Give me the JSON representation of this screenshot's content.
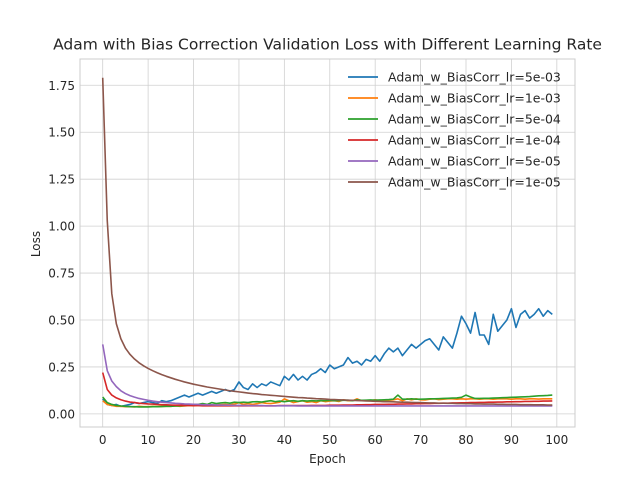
{
  "chart_data": {
    "type": "line",
    "title": "Adam with Bias Correction Validation Loss with Different Learning Rate",
    "xlabel": "Epoch",
    "ylabel": "Loss",
    "xlim": [
      -5,
      104
    ],
    "ylim": [
      -0.07,
      1.89
    ],
    "xticks": [
      0,
      10,
      20,
      30,
      40,
      50,
      60,
      70,
      80,
      90,
      100
    ],
    "yticks": [
      0.0,
      0.25,
      0.5,
      0.75,
      1.0,
      1.25,
      1.5,
      1.75
    ],
    "grid": true,
    "legend_position": "top-right",
    "series": [
      {
        "name": "Adam_w_BiasCorr_lr=5e-03",
        "color": "#1f77b4",
        "x": [
          0,
          1,
          2,
          3,
          4,
          5,
          6,
          7,
          8,
          9,
          10,
          11,
          12,
          13,
          14,
          15,
          16,
          17,
          18,
          19,
          20,
          21,
          22,
          23,
          24,
          25,
          26,
          27,
          28,
          29,
          30,
          31,
          32,
          33,
          34,
          35,
          36,
          37,
          38,
          39,
          40,
          41,
          42,
          43,
          44,
          45,
          46,
          47,
          48,
          49,
          50,
          51,
          52,
          53,
          54,
          55,
          56,
          57,
          58,
          59,
          60,
          61,
          62,
          63,
          64,
          65,
          66,
          67,
          68,
          69,
          70,
          71,
          72,
          73,
          74,
          75,
          76,
          77,
          78,
          79,
          80,
          81,
          82,
          83,
          84,
          85,
          86,
          87,
          88,
          89,
          90,
          91,
          92,
          93,
          94,
          95,
          96,
          97,
          98,
          99
        ],
        "y": [
          0.08,
          0.05,
          0.045,
          0.05,
          0.04,
          0.045,
          0.05,
          0.06,
          0.055,
          0.06,
          0.065,
          0.06,
          0.055,
          0.07,
          0.065,
          0.07,
          0.08,
          0.09,
          0.1,
          0.09,
          0.1,
          0.11,
          0.1,
          0.11,
          0.12,
          0.11,
          0.12,
          0.13,
          0.12,
          0.13,
          0.17,
          0.14,
          0.13,
          0.16,
          0.14,
          0.16,
          0.15,
          0.17,
          0.16,
          0.15,
          0.2,
          0.18,
          0.21,
          0.18,
          0.2,
          0.18,
          0.21,
          0.22,
          0.24,
          0.22,
          0.26,
          0.24,
          0.25,
          0.26,
          0.3,
          0.27,
          0.28,
          0.26,
          0.29,
          0.28,
          0.31,
          0.28,
          0.32,
          0.35,
          0.33,
          0.35,
          0.31,
          0.34,
          0.37,
          0.35,
          0.37,
          0.39,
          0.4,
          0.37,
          0.34,
          0.41,
          0.38,
          0.35,
          0.43,
          0.52,
          0.48,
          0.43,
          0.54,
          0.42,
          0.42,
          0.37,
          0.53,
          0.44,
          0.47,
          0.5,
          0.56,
          0.46,
          0.53,
          0.55,
          0.51,
          0.53,
          0.56,
          0.52,
          0.55,
          0.53
        ]
      },
      {
        "name": "Adam_w_BiasCorr_lr=1e-03",
        "color": "#ff7f0e",
        "x": [
          0,
          1,
          2,
          3,
          4,
          5,
          6,
          7,
          8,
          9,
          10,
          11,
          12,
          13,
          14,
          15,
          16,
          17,
          18,
          19,
          20,
          21,
          22,
          23,
          24,
          25,
          26,
          27,
          28,
          29,
          30,
          31,
          32,
          33,
          34,
          35,
          36,
          37,
          38,
          39,
          40,
          41,
          42,
          43,
          44,
          45,
          46,
          47,
          48,
          49,
          50,
          51,
          52,
          53,
          54,
          55,
          56,
          57,
          58,
          59,
          60,
          61,
          62,
          63,
          64,
          65,
          66,
          67,
          68,
          69,
          70,
          71,
          72,
          73,
          74,
          75,
          76,
          77,
          78,
          79,
          80,
          81,
          82,
          83,
          84,
          85,
          86,
          87,
          88,
          89,
          90,
          91,
          92,
          93,
          94,
          95,
          96,
          97,
          98,
          99
        ],
        "y": [
          0.07,
          0.05,
          0.045,
          0.04,
          0.04,
          0.038,
          0.038,
          0.037,
          0.04,
          0.038,
          0.038,
          0.04,
          0.039,
          0.04,
          0.041,
          0.04,
          0.042,
          0.04,
          0.042,
          0.044,
          0.043,
          0.045,
          0.046,
          0.044,
          0.048,
          0.047,
          0.049,
          0.05,
          0.048,
          0.052,
          0.06,
          0.05,
          0.055,
          0.05,
          0.054,
          0.06,
          0.056,
          0.055,
          0.058,
          0.062,
          0.08,
          0.07,
          0.06,
          0.065,
          0.07,
          0.062,
          0.065,
          0.06,
          0.07,
          0.065,
          0.068,
          0.07,
          0.066,
          0.075,
          0.07,
          0.07,
          0.08,
          0.07,
          0.072,
          0.07,
          0.075,
          0.07,
          0.07,
          0.073,
          0.075,
          0.08,
          0.07,
          0.08,
          0.075,
          0.08,
          0.075,
          0.074,
          0.078,
          0.08,
          0.076,
          0.078,
          0.08,
          0.08,
          0.078,
          0.08,
          0.078,
          0.08,
          0.08,
          0.078,
          0.08,
          0.08,
          0.078,
          0.08,
          0.08,
          0.08,
          0.078,
          0.08,
          0.08,
          0.078,
          0.08,
          0.08,
          0.079,
          0.08,
          0.08,
          0.08
        ]
      },
      {
        "name": "Adam_w_BiasCorr_lr=5e-04",
        "color": "#2ca02c",
        "x": [
          0,
          1,
          2,
          3,
          4,
          5,
          6,
          7,
          8,
          9,
          10,
          11,
          12,
          13,
          14,
          15,
          16,
          17,
          18,
          19,
          20,
          21,
          22,
          23,
          24,
          25,
          26,
          27,
          28,
          29,
          30,
          31,
          32,
          33,
          34,
          35,
          36,
          37,
          38,
          39,
          40,
          41,
          42,
          43,
          44,
          45,
          46,
          47,
          48,
          49,
          50,
          51,
          52,
          53,
          54,
          55,
          56,
          57,
          58,
          59,
          60,
          61,
          62,
          63,
          64,
          65,
          66,
          67,
          68,
          69,
          70,
          71,
          72,
          73,
          74,
          75,
          76,
          77,
          78,
          79,
          80,
          81,
          82,
          83,
          84,
          85,
          86,
          87,
          88,
          89,
          90,
          91,
          92,
          93,
          94,
          95,
          96,
          97,
          98,
          99
        ],
        "y": [
          0.09,
          0.06,
          0.05,
          0.045,
          0.042,
          0.04,
          0.038,
          0.038,
          0.037,
          0.037,
          0.037,
          0.038,
          0.038,
          0.039,
          0.04,
          0.04,
          0.042,
          0.043,
          0.045,
          0.046,
          0.05,
          0.05,
          0.055,
          0.05,
          0.06,
          0.055,
          0.058,
          0.06,
          0.057,
          0.062,
          0.06,
          0.062,
          0.06,
          0.064,
          0.065,
          0.063,
          0.067,
          0.07,
          0.065,
          0.068,
          0.065,
          0.068,
          0.07,
          0.067,
          0.07,
          0.068,
          0.07,
          0.069,
          0.071,
          0.07,
          0.072,
          0.07,
          0.071,
          0.072,
          0.073,
          0.07,
          0.075,
          0.072,
          0.073,
          0.074,
          0.073,
          0.074,
          0.075,
          0.076,
          0.078,
          0.1,
          0.078,
          0.078,
          0.08,
          0.078,
          0.078,
          0.079,
          0.08,
          0.08,
          0.081,
          0.082,
          0.083,
          0.084,
          0.085,
          0.088,
          0.1,
          0.09,
          0.082,
          0.082,
          0.083,
          0.083,
          0.084,
          0.085,
          0.086,
          0.087,
          0.088,
          0.089,
          0.09,
          0.091,
          0.092,
          0.094,
          0.096,
          0.097,
          0.098,
          0.1
        ]
      },
      {
        "name": "Adam_w_BiasCorr_lr=1e-04",
        "color": "#d62728",
        "x": [
          0,
          1,
          2,
          3,
          4,
          5,
          6,
          7,
          8,
          9,
          10,
          11,
          12,
          13,
          14,
          15,
          16,
          17,
          18,
          19,
          20,
          21,
          22,
          23,
          24,
          25,
          26,
          27,
          28,
          29,
          30,
          31,
          32,
          33,
          34,
          35,
          36,
          37,
          38,
          39,
          40,
          41,
          42,
          43,
          44,
          45,
          46,
          47,
          48,
          49,
          50,
          51,
          52,
          53,
          54,
          55,
          56,
          57,
          58,
          59,
          60,
          61,
          62,
          63,
          64,
          65,
          66,
          67,
          68,
          69,
          70,
          71,
          72,
          73,
          74,
          75,
          76,
          77,
          78,
          79,
          80,
          81,
          82,
          83,
          84,
          85,
          86,
          87,
          88,
          89,
          90,
          91,
          92,
          93,
          94,
          95,
          96,
          97,
          98,
          99
        ],
        "y": [
          0.22,
          0.13,
          0.1,
          0.085,
          0.075,
          0.068,
          0.063,
          0.06,
          0.057,
          0.055,
          0.053,
          0.052,
          0.05,
          0.049,
          0.048,
          0.047,
          0.046,
          0.046,
          0.045,
          0.045,
          0.044,
          0.044,
          0.043,
          0.043,
          0.043,
          0.043,
          0.043,
          0.043,
          0.043,
          0.043,
          0.043,
          0.043,
          0.043,
          0.043,
          0.043,
          0.043,
          0.043,
          0.043,
          0.043,
          0.044,
          0.044,
          0.044,
          0.044,
          0.044,
          0.044,
          0.044,
          0.045,
          0.045,
          0.045,
          0.045,
          0.046,
          0.046,
          0.046,
          0.047,
          0.047,
          0.047,
          0.048,
          0.048,
          0.049,
          0.049,
          0.05,
          0.05,
          0.05,
          0.051,
          0.051,
          0.052,
          0.052,
          0.053,
          0.053,
          0.054,
          0.054,
          0.055,
          0.055,
          0.056,
          0.056,
          0.057,
          0.057,
          0.058,
          0.058,
          0.059,
          0.059,
          0.06,
          0.06,
          0.061,
          0.061,
          0.062,
          0.062,
          0.063,
          0.063,
          0.064,
          0.064,
          0.065,
          0.065,
          0.066,
          0.066,
          0.067,
          0.067,
          0.068,
          0.068,
          0.069
        ]
      },
      {
        "name": "Adam_w_BiasCorr_lr=5e-05",
        "color": "#9467bd",
        "x": [
          0,
          1,
          2,
          3,
          4,
          5,
          6,
          7,
          8,
          9,
          10,
          11,
          12,
          13,
          14,
          15,
          16,
          17,
          18,
          19,
          20,
          21,
          22,
          23,
          24,
          25,
          26,
          27,
          28,
          29,
          30,
          31,
          32,
          33,
          34,
          35,
          36,
          37,
          38,
          39,
          40,
          41,
          42,
          43,
          44,
          45,
          46,
          47,
          48,
          49,
          50,
          51,
          52,
          53,
          54,
          55,
          56,
          57,
          58,
          59,
          60,
          61,
          62,
          63,
          64,
          65,
          66,
          67,
          68,
          69,
          70,
          71,
          72,
          73,
          74,
          75,
          76,
          77,
          78,
          79,
          80,
          81,
          82,
          83,
          84,
          85,
          86,
          87,
          88,
          89,
          90,
          91,
          92,
          93,
          94,
          95,
          96,
          97,
          98,
          99
        ],
        "y": [
          0.37,
          0.23,
          0.175,
          0.145,
          0.123,
          0.108,
          0.097,
          0.089,
          0.082,
          0.077,
          0.072,
          0.068,
          0.065,
          0.062,
          0.06,
          0.058,
          0.056,
          0.055,
          0.053,
          0.052,
          0.051,
          0.05,
          0.049,
          0.048,
          0.048,
          0.047,
          0.047,
          0.046,
          0.046,
          0.045,
          0.045,
          0.045,
          0.044,
          0.044,
          0.044,
          0.044,
          0.043,
          0.043,
          0.043,
          0.043,
          0.043,
          0.043,
          0.043,
          0.042,
          0.042,
          0.042,
          0.042,
          0.042,
          0.042,
          0.042,
          0.042,
          0.042,
          0.042,
          0.042,
          0.042,
          0.042,
          0.042,
          0.042,
          0.042,
          0.042,
          0.042,
          0.042,
          0.042,
          0.042,
          0.042,
          0.042,
          0.042,
          0.042,
          0.042,
          0.042,
          0.042,
          0.042,
          0.042,
          0.042,
          0.042,
          0.042,
          0.042,
          0.042,
          0.042,
          0.042,
          0.042,
          0.042,
          0.042,
          0.042,
          0.042,
          0.042,
          0.042,
          0.042,
          0.042,
          0.042,
          0.042,
          0.042,
          0.042,
          0.042,
          0.042,
          0.042,
          0.042,
          0.042,
          0.042,
          0.042
        ]
      },
      {
        "name": "Adam_w_BiasCorr_lr=1e-05",
        "color": "#8c564b",
        "x": [
          0,
          1,
          2,
          3,
          4,
          5,
          6,
          7,
          8,
          9,
          10,
          11,
          12,
          13,
          14,
          15,
          16,
          17,
          18,
          19,
          20,
          21,
          22,
          23,
          24,
          25,
          26,
          27,
          28,
          29,
          30,
          31,
          32,
          33,
          34,
          35,
          36,
          37,
          38,
          39,
          40,
          41,
          42,
          43,
          44,
          45,
          46,
          47,
          48,
          49,
          50,
          51,
          52,
          53,
          54,
          55,
          56,
          57,
          58,
          59,
          60,
          61,
          62,
          63,
          64,
          65,
          66,
          67,
          68,
          69,
          70,
          71,
          72,
          73,
          74,
          75,
          76,
          77,
          78,
          79,
          80,
          81,
          82,
          83,
          84,
          85,
          86,
          87,
          88,
          89,
          90,
          91,
          92,
          93,
          94,
          95,
          96,
          97,
          98,
          99
        ],
        "y": [
          1.79,
          1.03,
          0.64,
          0.48,
          0.4,
          0.35,
          0.317,
          0.292,
          0.272,
          0.256,
          0.242,
          0.23,
          0.219,
          0.209,
          0.2,
          0.192,
          0.184,
          0.177,
          0.17,
          0.164,
          0.158,
          0.153,
          0.148,
          0.143,
          0.139,
          0.135,
          0.131,
          0.127,
          0.123,
          0.12,
          0.117,
          0.114,
          0.111,
          0.108,
          0.106,
          0.103,
          0.101,
          0.099,
          0.097,
          0.095,
          0.093,
          0.091,
          0.089,
          0.087,
          0.086,
          0.084,
          0.083,
          0.081,
          0.08,
          0.079,
          0.077,
          0.076,
          0.075,
          0.074,
          0.073,
          0.072,
          0.071,
          0.07,
          0.069,
          0.068,
          0.067,
          0.066,
          0.065,
          0.065,
          0.064,
          0.063,
          0.062,
          0.062,
          0.061,
          0.06,
          0.06,
          0.059,
          0.058,
          0.058,
          0.057,
          0.057,
          0.056,
          0.056,
          0.055,
          0.055,
          0.054,
          0.054,
          0.053,
          0.053,
          0.052,
          0.052,
          0.052,
          0.051,
          0.051,
          0.05,
          0.05,
          0.05,
          0.049,
          0.049,
          0.049,
          0.048,
          0.048,
          0.048,
          0.047,
          0.047
        ]
      }
    ]
  }
}
